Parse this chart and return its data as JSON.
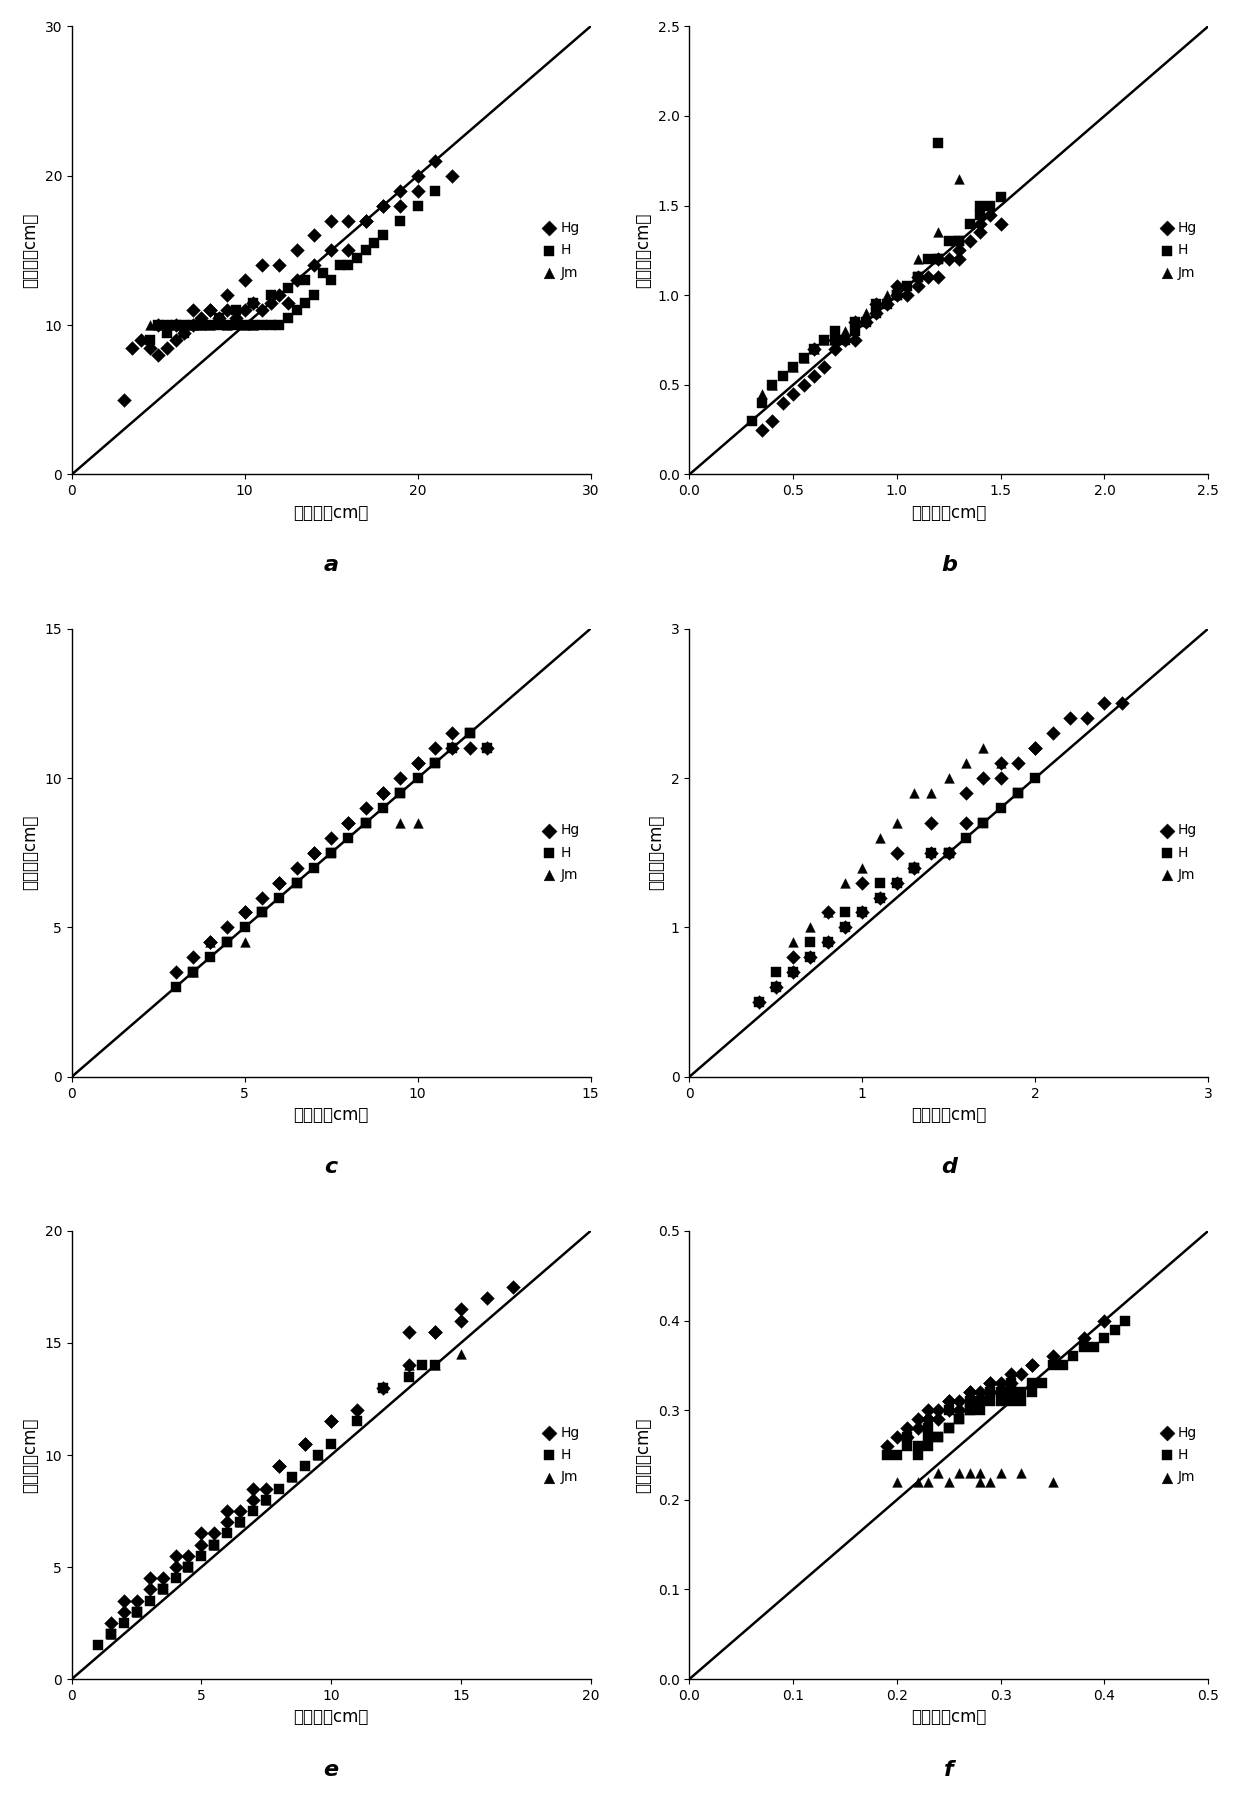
{
  "subplots": [
    {
      "label": "a",
      "xlim": [
        0,
        30
      ],
      "ylim": [
        0,
        30
      ],
      "xticks": [
        0,
        10,
        20,
        30
      ],
      "yticks": [
        0,
        10,
        20,
        30
      ],
      "xlabel": "实际値（cm）",
      "ylabel": "模拟値（cm）",
      "line_end": 30
    },
    {
      "label": "b",
      "xlim": [
        0,
        2.5
      ],
      "ylim": [
        0,
        2.5
      ],
      "xticks": [
        0,
        0.5,
        1.0,
        1.5,
        2.0,
        2.5
      ],
      "yticks": [
        0,
        0.5,
        1.0,
        1.5,
        2.0,
        2.5
      ],
      "xlabel": "实际値（cm）",
      "ylabel": "模拟値（cm）",
      "line_end": 2.5
    },
    {
      "label": "c",
      "xlim": [
        0,
        15
      ],
      "ylim": [
        0,
        15
      ],
      "xticks": [
        0,
        5,
        10,
        15
      ],
      "yticks": [
        0,
        5,
        10,
        15
      ],
      "xlabel": "实际値（cm）",
      "ylabel": "模拟値（cm）",
      "line_end": 15
    },
    {
      "label": "d",
      "xlim": [
        0,
        3
      ],
      "ylim": [
        0,
        3
      ],
      "xticks": [
        0,
        1,
        2,
        3
      ],
      "yticks": [
        0,
        1,
        2,
        3
      ],
      "xlabel": "实际値（cm）",
      "ylabel": "模拟値（cm）",
      "line_end": 3
    },
    {
      "label": "e",
      "xlim": [
        0,
        20
      ],
      "ylim": [
        0,
        20
      ],
      "xticks": [
        0,
        5,
        10,
        15,
        20
      ],
      "yticks": [
        0,
        5,
        10,
        15,
        20
      ],
      "xlabel": "实际値（cm）",
      "ylabel": "模拟値（cm）",
      "line_end": 20
    },
    {
      "label": "f",
      "xlim": [
        0,
        0.5
      ],
      "ylim": [
        0,
        0.5
      ],
      "xticks": [
        0,
        0.1,
        0.2,
        0.3,
        0.4,
        0.5
      ],
      "yticks": [
        0,
        0.1,
        0.2,
        0.3,
        0.4,
        0.5
      ],
      "xlabel": "实际値（cm）",
      "ylabel": "模拟値（cm）",
      "line_end": 0.5
    }
  ],
  "marker_color": "#000000",
  "line_color": "#000000",
  "bg_color": "#ffffff",
  "fontsize_label": 12,
  "fontsize_tick": 10,
  "fontsize_legend": 10,
  "fontsize_sublabel": 16
}
